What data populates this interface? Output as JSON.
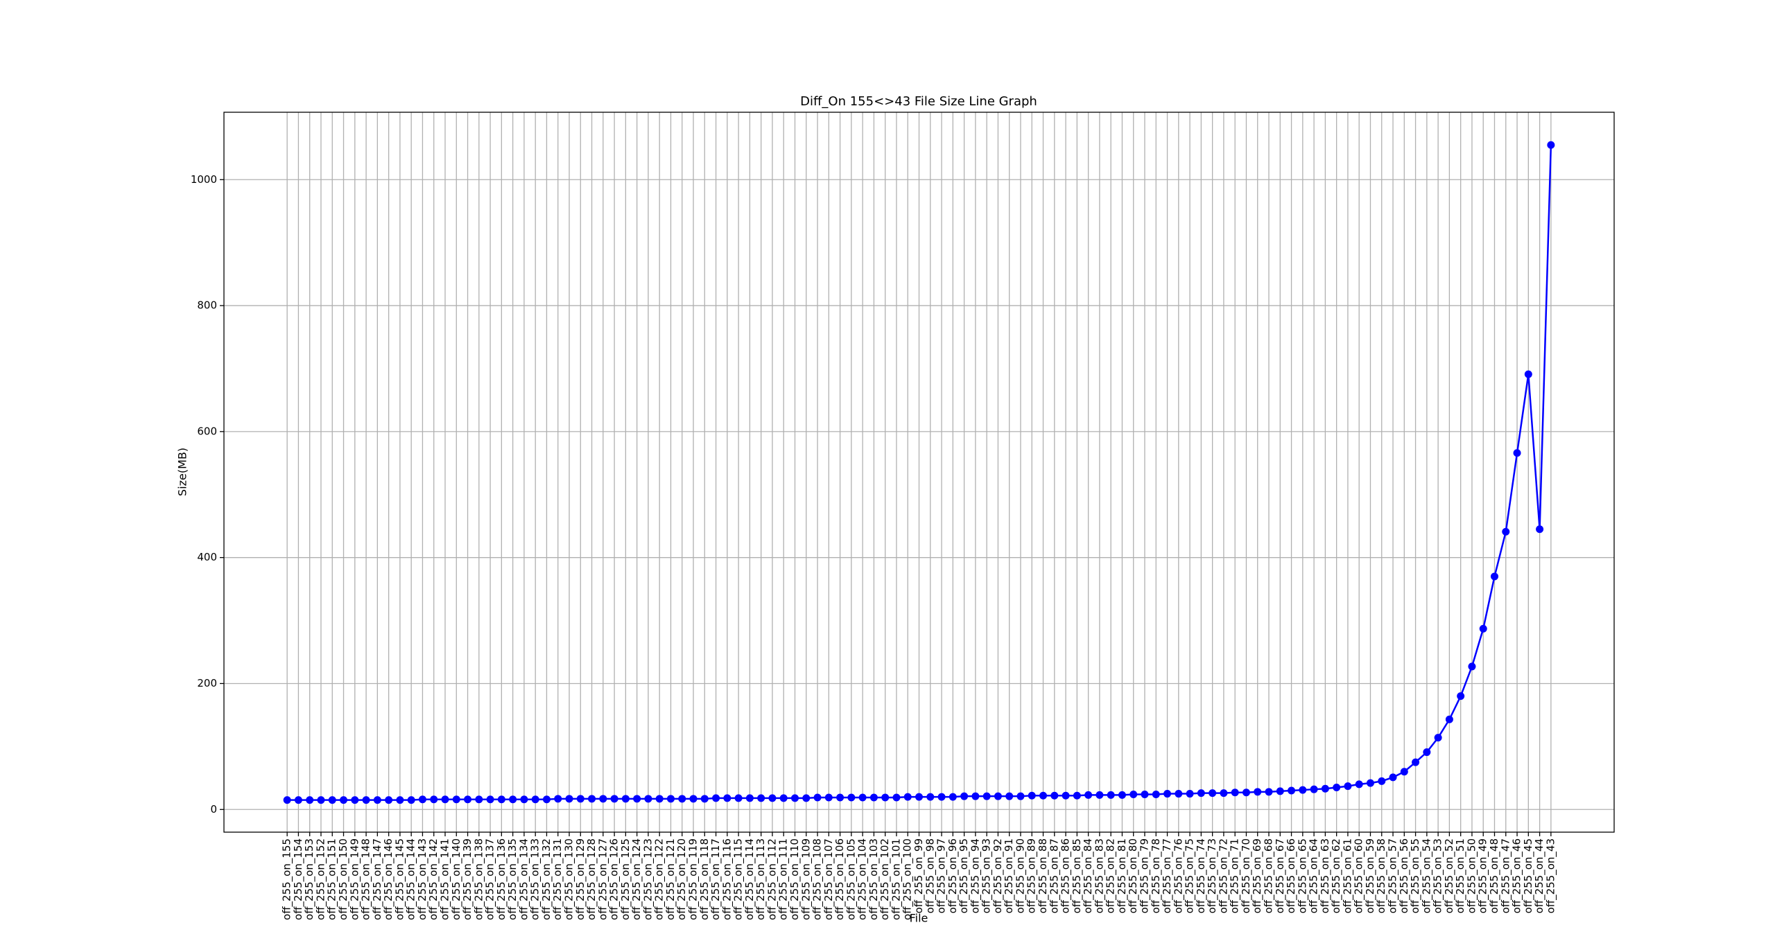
{
  "chart_data": {
    "type": "line",
    "title": "Diff_On 155<>43 File Size Line Graph",
    "x_label": "File",
    "y_label": "Size(MB)",
    "categories": [
      "off_255_on_155",
      "off_255_on_154",
      "off_255_on_153",
      "off_255_on_152",
      "off_255_on_151",
      "off_255_on_150",
      "off_255_on_149",
      "off_255_on_148",
      "off_255_on_147",
      "off_255_on_146",
      "off_255_on_145",
      "off_255_on_144",
      "off_255_on_143",
      "off_255_on_142",
      "off_255_on_141",
      "off_255_on_140",
      "off_255_on_139",
      "off_255_on_138",
      "off_255_on_137",
      "off_255_on_136",
      "off_255_on_135",
      "off_255_on_134",
      "off_255_on_133",
      "off_255_on_132",
      "off_255_on_131",
      "off_255_on_130",
      "off_255_on_129",
      "off_255_on_128",
      "off_255_on_127",
      "off_255_on_126",
      "off_255_on_125",
      "off_255_on_124",
      "off_255_on_123",
      "off_255_on_122",
      "off_255_on_121",
      "off_255_on_120",
      "off_255_on_119",
      "off_255_on_118",
      "off_255_on_117",
      "off_255_on_116",
      "off_255_on_115",
      "off_255_on_114",
      "off_255_on_113",
      "off_255_on_112",
      "off_255_on_111",
      "off_255_on_110",
      "off_255_on_109",
      "off_255_on_108",
      "off_255_on_107",
      "off_255_on_106",
      "off_255_on_105",
      "off_255_on_104",
      "off_255_on_103",
      "off_255_on_102",
      "off_255_on_101",
      "off_255_on_100",
      "off_255_on_99",
      "off_255_on_98",
      "off_255_on_97",
      "off_255_on_96",
      "off_255_on_95",
      "off_255_on_94",
      "off_255_on_93",
      "off_255_on_92",
      "off_255_on_91",
      "off_255_on_90",
      "off_255_on_89",
      "off_255_on_88",
      "off_255_on_87",
      "off_255_on_86",
      "off_255_on_85",
      "off_255_on_84",
      "off_255_on_83",
      "off_255_on_82",
      "off_255_on_81",
      "off_255_on_80",
      "off_255_on_79",
      "off_255_on_78",
      "off_255_on_77",
      "off_255_on_76",
      "off_255_on_75",
      "off_255_on_74",
      "off_255_on_73",
      "off_255_on_72",
      "off_255_on_71",
      "off_255_on_70",
      "off_255_on_69",
      "off_255_on_68",
      "off_255_on_67",
      "off_255_on_66",
      "off_255_on_65",
      "off_255_on_64",
      "off_255_on_63",
      "off_255_on_62",
      "off_255_on_61",
      "off_255_on_60",
      "off_255_on_59",
      "off_255_on_58",
      "off_255_on_57",
      "off_255_on_56",
      "off_255_on_55",
      "off_255_on_54",
      "off_255_on_53",
      "off_255_on_52",
      "off_255_on_51",
      "off_255_on_50",
      "off_255_on_49",
      "off_255_on_48",
      "off_255_on_47",
      "off_255_on_46",
      "off_255_on_45",
      "off_255_on_44",
      "off_255_on_43"
    ],
    "values": [
      15,
      15,
      15,
      15,
      15,
      15,
      15,
      15,
      15,
      15,
      15,
      15,
      16,
      16,
      16,
      16,
      16,
      16,
      16,
      16,
      16,
      16,
      16,
      16,
      17,
      17,
      17,
      17,
      17,
      17,
      17,
      17,
      17,
      17,
      17,
      17,
      17,
      17,
      18,
      18,
      18,
      18,
      18,
      18,
      18,
      18,
      18,
      19,
      19,
      19,
      19,
      19,
      19,
      19,
      19,
      20,
      20,
      20,
      20,
      20,
      21,
      21,
      21,
      21,
      21,
      21,
      22,
      22,
      22,
      22,
      22,
      23,
      23,
      23,
      23,
      24,
      24,
      24,
      25,
      25,
      25,
      26,
      26,
      26,
      27,
      27,
      28,
      28,
      29,
      30,
      31,
      32,
      33,
      35,
      37,
      40,
      42,
      45,
      51,
      60,
      75,
      91,
      114,
      143,
      180,
      227,
      287,
      370,
      441,
      566,
      691,
      445,
      1055
    ],
    "color": "#0000ff",
    "ylim": [
      -36,
      1107
    ],
    "yticks": [
      0,
      200,
      400,
      600,
      800,
      1000
    ],
    "grid": true,
    "marker": "circle"
  }
}
